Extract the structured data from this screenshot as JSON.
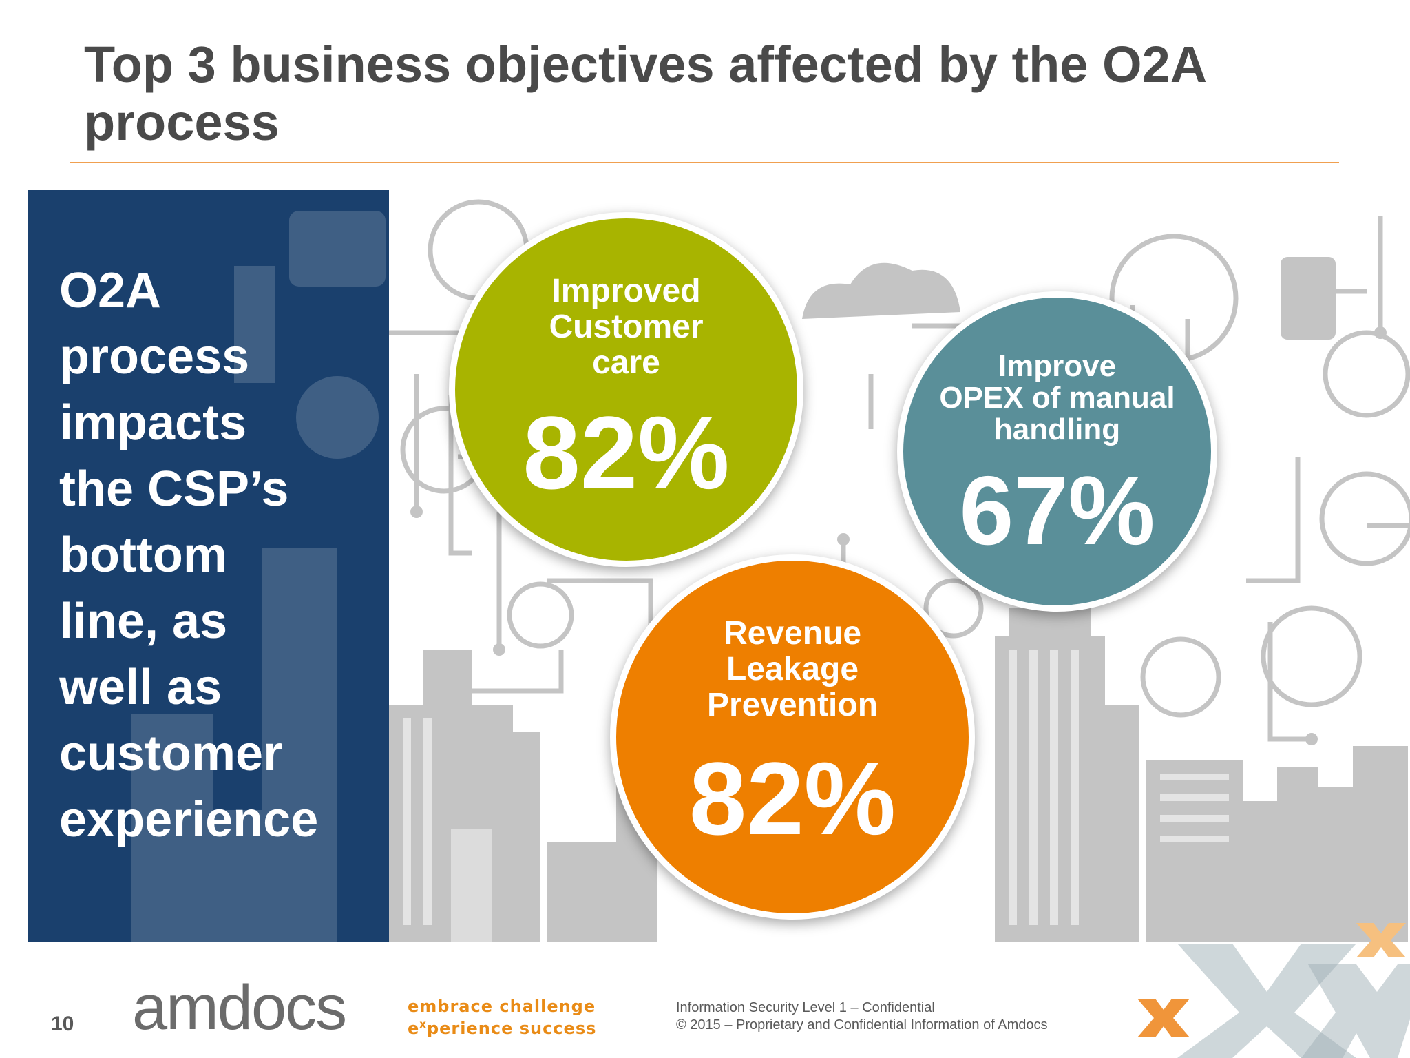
{
  "slide": {
    "title": "Top 3 business objectives affected by the O2A process",
    "page_number": "10"
  },
  "side_panel": {
    "text": "O2A\nprocess\nimpacts\nthe CSP’s\nbottom\nline, as\nwell as\ncustomer\nexperience",
    "color": "#1a406d"
  },
  "objectives": [
    {
      "label": "Improved\nCustomer\ncare",
      "value": "82%",
      "color": "#a8b400"
    },
    {
      "label": "Improve\nOPEX of manual\nhandling",
      "value": "67%",
      "color": "#5a8f99"
    },
    {
      "label": "Revenue\nLeakage\nPrevention",
      "value": "82%",
      "color": "#ee7f00"
    }
  ],
  "footer": {
    "logo": "amdocs",
    "tagline_line1": "embrace challenge",
    "tagline_line2_prefix": "e",
    "tagline_line2_sup": "x",
    "tagline_line2_rest": "perience success",
    "confidential_line1": "Information Security Level 1 – Confidential",
    "confidential_line2": "© 2015 – Proprietary and Confidential Information of Amdocs",
    "brand_mark": "x-marks-logo"
  },
  "colors": {
    "title": "#4a4a4a",
    "rule": "#f0a050",
    "illustration": "#c8c8c8",
    "tagline": "#e98b16"
  }
}
